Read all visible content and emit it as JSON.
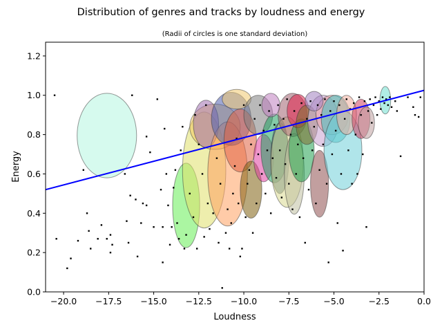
{
  "chart_data": {
    "type": "scatter",
    "title": "Distribution of genres and tracks by loudness and energy",
    "subtitle": "(Radii of circles is one standard deviation)",
    "xlabel": "Loudness",
    "ylabel": "Energy",
    "xlim": [
      -21,
      0
    ],
    "ylim": [
      0,
      1.27
    ],
    "xticks": [
      -20.0,
      -17.5,
      -15.0,
      -12.5,
      -10.0,
      -7.5,
      -5.0,
      -2.5,
      0.0
    ],
    "xtick_labels": [
      "−20.0",
      "−17.5",
      "−15.0",
      "−12.5",
      "−10.0",
      "−7.5",
      "−5.0",
      "−2.5",
      "0.0"
    ],
    "yticks": [
      0.0,
      0.2,
      0.4,
      0.6,
      0.8,
      1.0,
      1.2
    ],
    "ytick_labels": [
      "0.0",
      "0.2",
      "0.4",
      "0.6",
      "0.8",
      "1.0",
      "1.2"
    ],
    "grid": false,
    "trend_line": {
      "color": "#0000ff",
      "points": [
        [
          -21.0,
          0.52
        ],
        [
          0.0,
          1.025
        ]
      ]
    },
    "genre_ellipses": [
      {
        "cx": -17.6,
        "cy": 0.795,
        "sx": 1.65,
        "sy": 0.215,
        "color": "#b5f5e0"
      },
      {
        "cx": -13.2,
        "cy": 0.44,
        "sx": 0.75,
        "sy": 0.215,
        "color": "#66ee55"
      },
      {
        "cx": -12.2,
        "cy": 0.62,
        "sx": 1.2,
        "sy": 0.295,
        "color": "#e0e06a"
      },
      {
        "cx": -11.6,
        "cy": 0.84,
        "sx": 1.4,
        "sy": 0.115,
        "color": "#f0c860"
      },
      {
        "cx": -12.1,
        "cy": 0.855,
        "sx": 0.7,
        "sy": 0.12,
        "color": "#a070b0"
      },
      {
        "cx": -10.9,
        "cy": 0.6,
        "sx": 1.1,
        "sy": 0.265,
        "color": "#ffa060"
      },
      {
        "cx": -10.7,
        "cy": 0.88,
        "sx": 1.1,
        "sy": 0.135,
        "color": "#5060b0"
      },
      {
        "cx": -10.2,
        "cy": 0.77,
        "sx": 0.9,
        "sy": 0.16,
        "color": "#e06040"
      },
      {
        "cx": -10.4,
        "cy": 0.98,
        "sx": 0.8,
        "sy": 0.05,
        "color": "#f0c870"
      },
      {
        "cx": -9.6,
        "cy": 0.52,
        "sx": 0.6,
        "sy": 0.145,
        "color": "#806010"
      },
      {
        "cx": -9.2,
        "cy": 0.9,
        "sx": 0.8,
        "sy": 0.1,
        "color": "#808080"
      },
      {
        "cx": -8.9,
        "cy": 0.68,
        "sx": 0.55,
        "sy": 0.12,
        "color": "#e040a0"
      },
      {
        "cx": -8.3,
        "cy": 0.73,
        "sx": 0.75,
        "sy": 0.175,
        "color": "#20a060"
      },
      {
        "cx": -8.0,
        "cy": 0.68,
        "sx": 0.5,
        "sy": 0.18,
        "color": "#406080"
      },
      {
        "cx": -7.6,
        "cy": 0.66,
        "sx": 0.9,
        "sy": 0.23,
        "color": "#d8d890"
      },
      {
        "cx": -7.2,
        "cy": 0.6,
        "sx": 0.55,
        "sy": 0.205,
        "color": "#c0c0a0"
      },
      {
        "cx": -7.3,
        "cy": 0.9,
        "sx": 0.8,
        "sy": 0.11,
        "color": "#a06070"
      },
      {
        "cx": -6.8,
        "cy": 0.72,
        "sx": 0.7,
        "sy": 0.16,
        "color": "#20a050"
      },
      {
        "cx": -7.0,
        "cy": 0.92,
        "sx": 0.6,
        "sy": 0.085,
        "color": "#e0204a"
      },
      {
        "cx": -6.5,
        "cy": 0.85,
        "sx": 0.6,
        "sy": 0.1,
        "color": "#807030"
      },
      {
        "cx": -5.8,
        "cy": 0.55,
        "sx": 0.5,
        "sy": 0.17,
        "color": "#905050"
      },
      {
        "cx": -5.6,
        "cy": 0.87,
        "sx": 0.85,
        "sy": 0.13,
        "color": "#c8a0d0"
      },
      {
        "cx": -5.1,
        "cy": 0.9,
        "sx": 0.9,
        "sy": 0.1,
        "color": "#e8a0a0"
      },
      {
        "cx": -4.9,
        "cy": 0.88,
        "sx": 0.8,
        "sy": 0.12,
        "color": "#40c0c0"
      },
      {
        "cx": -4.5,
        "cy": 0.72,
        "sx": 1.05,
        "sy": 0.2,
        "color": "#70d0d8"
      },
      {
        "cx": -4.3,
        "cy": 0.9,
        "sx": 0.55,
        "sy": 0.1,
        "color": "#f0b0a0"
      },
      {
        "cx": -3.5,
        "cy": 0.88,
        "sx": 0.5,
        "sy": 0.1,
        "color": "#d04060"
      },
      {
        "cx": -3.2,
        "cy": 0.86,
        "sx": 0.45,
        "sy": 0.08,
        "color": "#c0a0a0"
      },
      {
        "cx": -2.15,
        "cy": 0.975,
        "sx": 0.3,
        "sy": 0.07,
        "color": "#70e0d0"
      },
      {
        "cx": -6.1,
        "cy": 0.97,
        "sx": 0.5,
        "sy": 0.05,
        "color": "#a080c0"
      },
      {
        "cx": -8.5,
        "cy": 0.95,
        "sx": 0.5,
        "sy": 0.06,
        "color": "#c080c0"
      }
    ],
    "tracks": [
      [
        -20.5,
        1.0
      ],
      [
        -20.4,
        0.27
      ],
      [
        -19.8,
        0.12
      ],
      [
        -19.6,
        0.17
      ],
      [
        -19.2,
        0.26
      ],
      [
        -18.9,
        0.62
      ],
      [
        -18.7,
        0.4
      ],
      [
        -18.6,
        0.31
      ],
      [
        -18.5,
        0.22
      ],
      [
        -18.1,
        0.27
      ],
      [
        -17.9,
        0.34
      ],
      [
        -17.6,
        0.27
      ],
      [
        -17.4,
        0.29
      ],
      [
        -17.3,
        0.24
      ],
      [
        -17.4,
        0.2
      ],
      [
        -16.6,
        0.6
      ],
      [
        -16.5,
        0.36
      ],
      [
        -16.3,
        0.49
      ],
      [
        -16.0,
        0.47
      ],
      [
        -16.2,
        1.0
      ],
      [
        -16.4,
        0.25
      ],
      [
        -15.9,
        0.18
      ],
      [
        -15.7,
        0.35
      ],
      [
        -15.6,
        0.45
      ],
      [
        -15.4,
        0.44
      ],
      [
        -15.4,
        0.79
      ],
      [
        -15.2,
        0.71
      ],
      [
        -15.0,
        0.33
      ],
      [
        -14.8,
        0.98
      ],
      [
        -14.6,
        0.52
      ],
      [
        -14.5,
        0.33
      ],
      [
        -14.5,
        0.15
      ],
      [
        -14.4,
        0.83
      ],
      [
        -14.3,
        0.6
      ],
      [
        -14.2,
        0.44
      ],
      [
        -14.1,
        0.24
      ],
      [
        -14.0,
        0.33
      ],
      [
        -13.9,
        0.53
      ],
      [
        -13.8,
        0.62
      ],
      [
        -13.7,
        0.35
      ],
      [
        -13.6,
        0.27
      ],
      [
        -13.5,
        0.72
      ],
      [
        -13.4,
        0.84
      ],
      [
        -13.3,
        0.22
      ],
      [
        -13.2,
        0.29
      ],
      [
        -13.0,
        0.5
      ],
      [
        -12.8,
        0.38
      ],
      [
        -12.7,
        0.9
      ],
      [
        -12.6,
        0.22
      ],
      [
        -12.5,
        0.75
      ],
      [
        -12.3,
        0.6
      ],
      [
        -12.2,
        0.28
      ],
      [
        -12.1,
        0.95
      ],
      [
        -12.0,
        0.45
      ],
      [
        -11.9,
        0.32
      ],
      [
        -11.7,
        0.4
      ],
      [
        -11.5,
        0.68
      ],
      [
        -11.4,
        0.25
      ],
      [
        -11.3,
        0.55
      ],
      [
        -11.2,
        0.02
      ],
      [
        -11.0,
        0.3
      ],
      [
        -10.9,
        0.42
      ],
      [
        -10.8,
        0.22
      ],
      [
        -10.7,
        0.35
      ],
      [
        -10.6,
        0.5
      ],
      [
        -10.5,
        0.64
      ],
      [
        -10.4,
        0.78
      ],
      [
        -10.3,
        0.45
      ],
      [
        -10.2,
        0.18
      ],
      [
        -10.1,
        0.22
      ],
      [
        -10.0,
        0.95
      ],
      [
        -9.9,
        0.38
      ],
      [
        -9.8,
        0.55
      ],
      [
        -9.7,
        0.62
      ],
      [
        -9.6,
        0.75
      ],
      [
        -9.5,
        0.3
      ],
      [
        -9.4,
        0.88
      ],
      [
        -9.3,
        0.45
      ],
      [
        -9.2,
        0.7
      ],
      [
        -9.1,
        0.95
      ],
      [
        -9.0,
        0.6
      ],
      [
        -8.9,
        0.82
      ],
      [
        -8.8,
        0.5
      ],
      [
        -8.7,
        0.72
      ],
      [
        -8.6,
        0.92
      ],
      [
        -8.5,
        0.4
      ],
      [
        -8.4,
        0.68
      ],
      [
        -8.3,
        0.85
      ],
      [
        -8.2,
        0.58
      ],
      [
        -8.1,
        0.95
      ],
      [
        -8.0,
        0.72
      ],
      [
        -7.9,
        0.48
      ],
      [
        -7.8,
        0.88
      ],
      [
        -7.7,
        0.65
      ],
      [
        -7.6,
        0.98
      ],
      [
        -7.5,
        0.55
      ],
      [
        -7.4,
        0.8
      ],
      [
        -7.3,
        0.42
      ],
      [
        -7.2,
        0.92
      ],
      [
        -7.1,
        0.6
      ],
      [
        -7.0,
        0.75
      ],
      [
        -6.9,
        0.38
      ],
      [
        -6.8,
        0.96
      ],
      [
        -6.7,
        0.68
      ],
      [
        -6.6,
        0.25
      ],
      [
        -6.5,
        0.88
      ],
      [
        -6.4,
        0.52
      ],
      [
        -6.3,
        0.97
      ],
      [
        -6.2,
        0.72
      ],
      [
        -6.1,
        0.84
      ],
      [
        -6.0,
        0.45
      ],
      [
        -5.9,
        0.95
      ],
      [
        -5.8,
        0.62
      ],
      [
        -5.7,
        0.9
      ],
      [
        -5.6,
        0.75
      ],
      [
        -5.5,
        0.98
      ],
      [
        -5.4,
        0.55
      ],
      [
        -5.3,
        0.15
      ],
      [
        -5.2,
        0.92
      ],
      [
        -5.1,
        0.7
      ],
      [
        -5.0,
        0.97
      ],
      [
        -4.9,
        0.82
      ],
      [
        -4.8,
        0.35
      ],
      [
        -4.7,
        0.95
      ],
      [
        -4.6,
        0.6
      ],
      [
        -4.5,
        0.21
      ],
      [
        -4.4,
        0.88
      ],
      [
        -4.3,
        0.98
      ],
      [
        -4.2,
        0.72
      ],
      [
        -4.1,
        0.93
      ],
      [
        -4.0,
        0.55
      ],
      [
        -3.9,
        0.96
      ],
      [
        -3.8,
        0.8
      ],
      [
        -3.7,
        0.6
      ],
      [
        -3.6,
        0.99
      ],
      [
        -3.5,
        0.9
      ],
      [
        -3.4,
        0.7
      ],
      [
        -3.3,
        0.97
      ],
      [
        -3.2,
        0.33
      ],
      [
        -3.1,
        0.92
      ],
      [
        -3.0,
        0.98
      ],
      [
        -2.9,
        0.86
      ],
      [
        -2.8,
        0.95
      ],
      [
        -2.7,
        0.99
      ],
      [
        -2.6,
        0.9
      ],
      [
        -2.5,
        0.97
      ],
      [
        -2.4,
        0.93
      ],
      [
        -2.3,
        0.99
      ],
      [
        -2.2,
        0.96
      ],
      [
        -2.1,
        0.98
      ],
      [
        -2.0,
        0.95
      ],
      [
        -1.9,
        0.99
      ],
      [
        -1.8,
        0.94
      ],
      [
        -1.6,
        0.97
      ],
      [
        -1.5,
        0.92
      ],
      [
        -1.3,
        0.69
      ],
      [
        -0.9,
        0.99
      ],
      [
        -0.6,
        0.94
      ],
      [
        -0.5,
        0.9
      ],
      [
        -0.3,
        0.89
      ],
      [
        -0.2,
        0.99
      ]
    ]
  }
}
